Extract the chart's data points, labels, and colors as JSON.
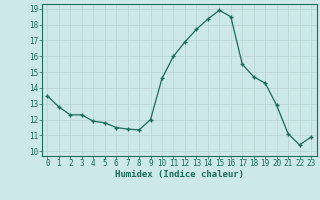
{
  "x": [
    0,
    1,
    2,
    3,
    4,
    5,
    6,
    7,
    8,
    9,
    10,
    11,
    12,
    13,
    14,
    15,
    16,
    17,
    18,
    19,
    20,
    21,
    22,
    23
  ],
  "y": [
    13.5,
    12.8,
    12.3,
    12.3,
    11.9,
    11.8,
    11.5,
    11.4,
    11.35,
    12.0,
    14.6,
    16.0,
    16.9,
    17.7,
    18.35,
    18.9,
    18.5,
    15.5,
    14.7,
    14.3,
    12.9,
    11.1,
    10.4,
    10.9
  ],
  "xlabel": "Humidex (Indice chaleur)",
  "ylim": [
    10,
    19
  ],
  "xlim": [
    -0.5,
    23.5
  ],
  "yticks": [
    10,
    11,
    12,
    13,
    14,
    15,
    16,
    17,
    18,
    19
  ],
  "xticks": [
    0,
    1,
    2,
    3,
    4,
    5,
    6,
    7,
    8,
    9,
    10,
    11,
    12,
    13,
    14,
    15,
    16,
    17,
    18,
    19,
    20,
    21,
    22,
    23
  ],
  "line_color": "#1a6b5a",
  "marker_color": "#1a6b5a",
  "bg_color": "#cce8e8",
  "grid_color": "#b8d0d0",
  "text_color": "#1a6b5a",
  "title_fontsize": 6.5,
  "tick_fontsize": 5.5
}
